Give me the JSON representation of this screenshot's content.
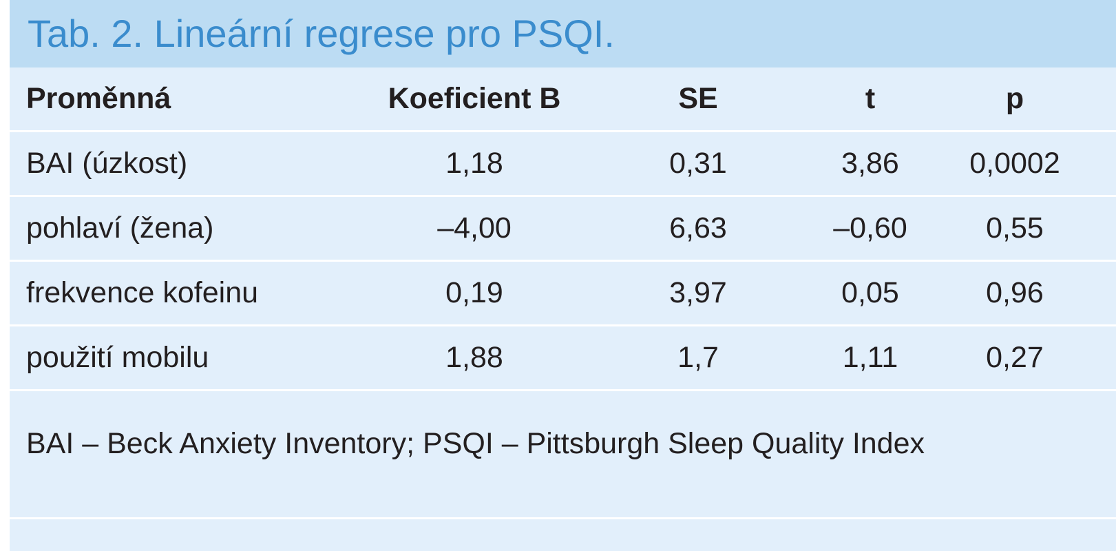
{
  "title": "Tab. 2. Lineární regrese pro PSQI.",
  "table": {
    "headers": [
      "Proměnná",
      "Koeficient B",
      "SE",
      "t",
      "p"
    ],
    "rows": [
      [
        "BAI (úzkost)",
        "1,18",
        "0,31",
        "3,86",
        "0,0002"
      ],
      [
        "pohlaví (žena)",
        "–4,00",
        "6,63",
        "–0,60",
        "0,55"
      ],
      [
        "frekvence kofeinu",
        "0,19",
        "3,97",
        "0,05",
        "0,96"
      ],
      [
        "použití mobilu",
        "1,88",
        "1,7",
        "1,11",
        "0,27"
      ]
    ]
  },
  "footnote": "BAI – Beck Anxiety Inventory; PSQI – Pittsburgh Sleep Quality Index"
}
